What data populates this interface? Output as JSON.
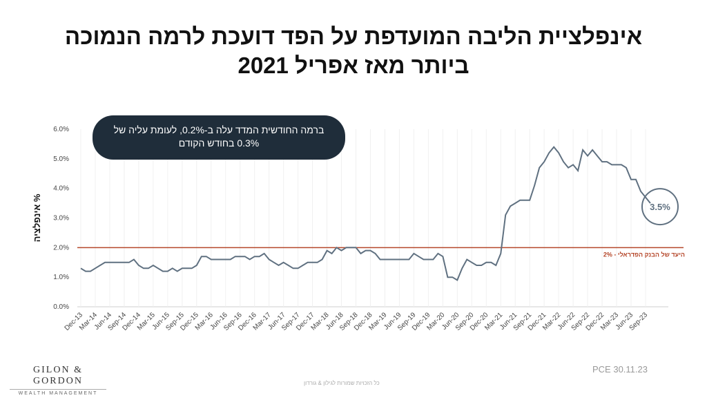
{
  "chart_data": {
    "type": "line",
    "title_lines": [
      "אינפלציית הליבה המועדפת על הפד דועכת לרמה הנמוכה",
      "ביותר מאז אפריל 2021"
    ],
    "y_label": "% אינפלציה",
    "annotation_lines": [
      "ברמה החודשית  המדד עלה ב-0.2%, לעומת עליה של",
      "0.3% בחודש הקודם"
    ],
    "callout": "3.5%",
    "reference_line": {
      "value": 2,
      "label": "היעד של הבנק הפדראלי - 2%",
      "color": "#b5472a"
    },
    "categories": [
      "Dec-13",
      null,
      null,
      "Mar-14",
      null,
      null,
      "Jun-14",
      null,
      null,
      "Sep-14",
      null,
      null,
      "Dec-14",
      null,
      null,
      "Mar-15",
      null,
      null,
      "Jun-15",
      null,
      null,
      "Sep-15",
      null,
      null,
      "Dec-15",
      null,
      null,
      "Mar-16",
      null,
      null,
      "Jun-16",
      null,
      null,
      "Sep-16",
      null,
      null,
      "Dec-16",
      null,
      null,
      "Mar-17",
      null,
      null,
      "Jun-17",
      null,
      null,
      "Sep-17",
      null,
      null,
      "Dec-17",
      null,
      null,
      "Mar-18",
      null,
      null,
      "Jun-18",
      null,
      null,
      "Sep-18",
      null,
      null,
      "Dec-18",
      null,
      null,
      "Mar-19",
      null,
      null,
      "Jun-19",
      null,
      null,
      "Sep-19",
      null,
      null,
      "Dec-19",
      null,
      null,
      "Mar-20",
      null,
      null,
      "Jun-20",
      null,
      null,
      "Sep-20",
      null,
      null,
      "Dec-20",
      null,
      null,
      "Mar-21",
      null,
      null,
      "Jun-21",
      null,
      null,
      "Sep-21",
      null,
      null,
      "Dec-21",
      null,
      null,
      "Mar-22",
      null,
      null,
      "Jun-22",
      null,
      null,
      "Sep-22",
      null,
      null,
      "Dec-22",
      null,
      null,
      "Mar-23",
      null,
      null,
      "Jun-23",
      null,
      null,
      "Sep-23",
      null
    ],
    "series": [
      {
        "name": "PCE",
        "color": "#5f7080",
        "values": [
          1.3,
          1.2,
          1.2,
          1.3,
          1.4,
          1.5,
          1.5,
          1.5,
          1.5,
          1.5,
          1.5,
          1.6,
          1.4,
          1.3,
          1.3,
          1.4,
          1.3,
          1.2,
          1.2,
          1.3,
          1.2,
          1.3,
          1.3,
          1.3,
          1.4,
          1.7,
          1.7,
          1.6,
          1.6,
          1.6,
          1.6,
          1.6,
          1.7,
          1.7,
          1.7,
          1.6,
          1.7,
          1.7,
          1.8,
          1.6,
          1.5,
          1.4,
          1.5,
          1.4,
          1.3,
          1.3,
          1.4,
          1.5,
          1.5,
          1.5,
          1.6,
          1.9,
          1.8,
          2.0,
          1.9,
          2.0,
          2.0,
          2.0,
          1.8,
          1.9,
          1.9,
          1.8,
          1.6,
          1.6,
          1.6,
          1.6,
          1.6,
          1.6,
          1.6,
          1.8,
          1.7,
          1.6,
          1.6,
          1.6,
          1.8,
          1.7,
          1.0,
          1.0,
          0.9,
          1.3,
          1.6,
          1.5,
          1.4,
          1.4,
          1.5,
          1.5,
          1.4,
          1.8,
          3.1,
          3.4,
          3.5,
          3.6,
          3.6,
          3.6,
          4.1,
          4.7,
          4.9,
          5.2,
          5.4,
          5.2,
          4.9,
          4.7,
          4.8,
          4.6,
          5.3,
          5.1,
          5.3,
          5.1,
          4.9,
          4.9,
          4.8,
          4.8,
          4.8,
          4.7,
          4.3,
          4.3,
          3.9,
          3.7,
          3.5
        ]
      }
    ],
    "ylim": [
      0,
      6
    ],
    "yticks": [
      {
        "value": 0,
        "label": "0.0%"
      },
      {
        "value": 1,
        "label": "1.0%"
      },
      {
        "value": 2,
        "label": "2.0%"
      },
      {
        "value": 3,
        "label": "3.0%"
      },
      {
        "value": 4,
        "label": "4.0%"
      },
      {
        "value": 5,
        "label": "5.0%"
      },
      {
        "value": 6,
        "label": "6.0%"
      }
    ],
    "grid": true
  },
  "footer": {
    "source": "PCE 30.11.23",
    "logo": "GILON & GORDON",
    "logo_sub": "WEALTH MANAGEMENT",
    "copyright": "כל הזכויות שמורות לגילון & גורדון"
  }
}
